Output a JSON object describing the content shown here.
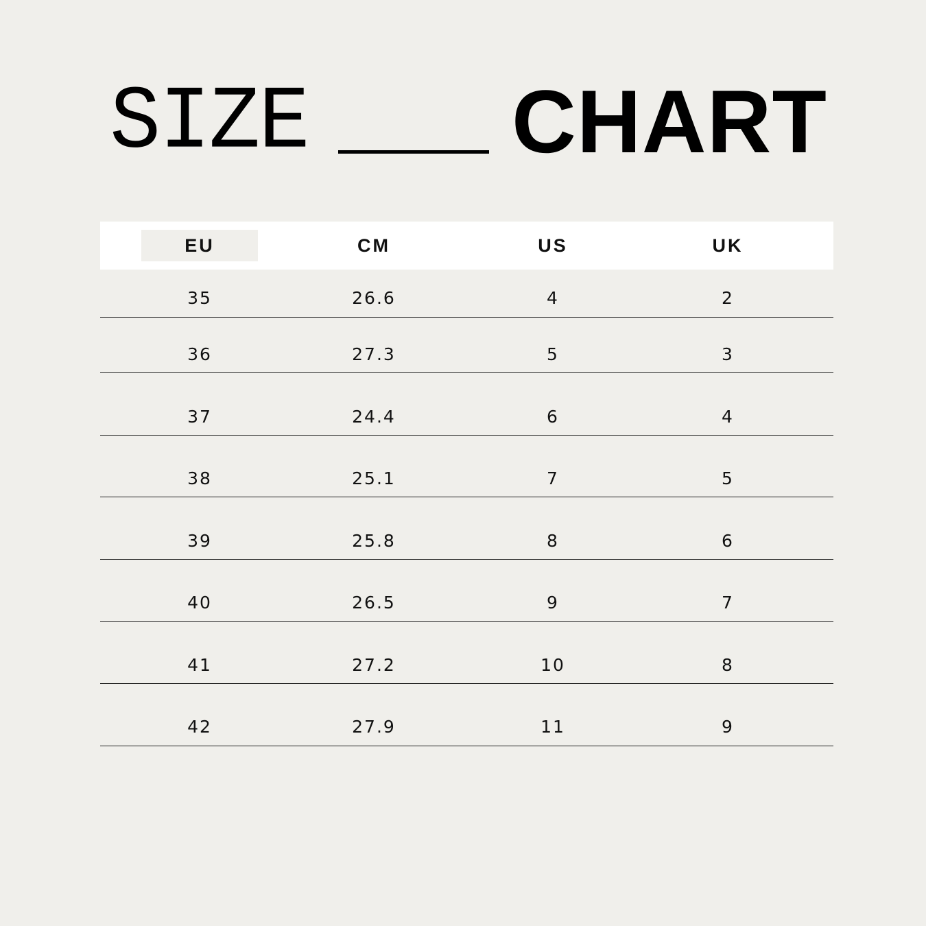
{
  "title": {
    "light": "SIZE",
    "bold": "CHART"
  },
  "colors": {
    "background": "#f0efeb",
    "header_bg": "#ffffff",
    "highlight": "#f0efeb",
    "text": "#111111"
  },
  "table": {
    "headers": [
      "EU",
      "CM",
      "US",
      "UK"
    ],
    "highlighted_header": "EU",
    "rows": [
      [
        "35",
        "26.6",
        "4",
        "2"
      ],
      [
        "36",
        "27.3",
        "5",
        "3"
      ],
      [
        "37",
        "24.4",
        "6",
        "4"
      ],
      [
        "38",
        "25.1",
        "7",
        "5"
      ],
      [
        "39",
        "25.8",
        "8",
        "6"
      ],
      [
        "40",
        "26.5",
        "9",
        "7"
      ],
      [
        "41",
        "27.2",
        "10",
        "8"
      ],
      [
        "42",
        "27.9",
        "11",
        "9"
      ]
    ]
  }
}
